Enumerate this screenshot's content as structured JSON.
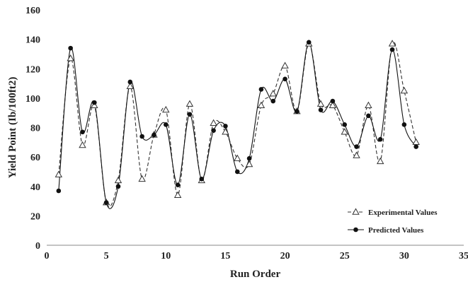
{
  "chart_data": {
    "type": "line",
    "xlabel": "Run Order",
    "ylabel": "Yield Point (Ib/100ft2)",
    "xlim": [
      0,
      35
    ],
    "ylim": [
      0,
      160
    ],
    "xticks": [
      0,
      5,
      10,
      15,
      20,
      25,
      30,
      35
    ],
    "yticks": [
      0,
      20,
      40,
      60,
      80,
      100,
      120,
      140,
      160
    ],
    "grid": false,
    "legend_position": "bottom-right",
    "series": [
      {
        "name": "Experimental Values",
        "line_style": "dashed",
        "marker": "open-triangle",
        "color": "#333333",
        "x": [
          1,
          2,
          3,
          4,
          5,
          6,
          7,
          8,
          9,
          10,
          11,
          12,
          13,
          14,
          15,
          16,
          17,
          18,
          19,
          20,
          21,
          22,
          23,
          24,
          25,
          26,
          27,
          28,
          29,
          30,
          31
        ],
        "values": [
          48,
          127,
          68,
          95,
          29,
          44,
          108,
          45,
          75,
          92,
          34,
          96,
          44,
          83,
          77,
          59,
          55,
          95,
          103,
          122,
          91,
          137,
          96,
          95,
          77,
          61,
          95,
          57,
          137,
          105,
          70
        ]
      },
      {
        "name": "Predicted Values",
        "line_style": "solid",
        "marker": "filled-circle",
        "color": "#111111",
        "x": [
          1,
          2,
          3,
          4,
          5,
          6,
          7,
          8,
          9,
          10,
          11,
          12,
          13,
          14,
          15,
          16,
          17,
          18,
          19,
          20,
          21,
          22,
          23,
          24,
          25,
          26,
          27,
          28,
          29,
          30,
          31
        ],
        "values": [
          37,
          134,
          77,
          97,
          29,
          40,
          111,
          74,
          75,
          82,
          41,
          89,
          45,
          78,
          81,
          50,
          59,
          106,
          98,
          113,
          91,
          138,
          92,
          98,
          82,
          67,
          88,
          72,
          133,
          82,
          67
        ]
      }
    ]
  }
}
